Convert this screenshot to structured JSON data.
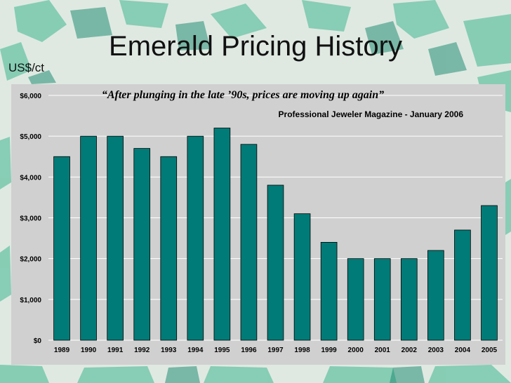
{
  "slide": {
    "title": "Emerald Pricing History",
    "unit_label": "US$/ct"
  },
  "colors": {
    "bar_fill": "#007b77",
    "plot_background": "#d0d0d0",
    "gridline": "#ffffff",
    "slide_background": "#dfe9e2",
    "emerald_light": "#3fb78f",
    "emerald_dark": "#13866a"
  },
  "chart_data": {
    "type": "bar",
    "title": "",
    "annotations": [
      "“After plunging in the late ’90s, prices are moving up again”",
      "Professional Jeweler Magazine - January 2006"
    ],
    "xlabel": "",
    "ylabel": "US$/ct",
    "categories": [
      "1989",
      "1990",
      "1991",
      "1992",
      "1993",
      "1994",
      "1995",
      "1996",
      "1997",
      "1998",
      "1999",
      "2000",
      "2001",
      "2002",
      "2003",
      "2004",
      "2005"
    ],
    "values": [
      4500,
      5000,
      5000,
      4700,
      4500,
      5000,
      5200,
      4800,
      3800,
      3100,
      2400,
      2000,
      2000,
      2000,
      2200,
      2700,
      3300
    ],
    "ylim": [
      0,
      6000
    ],
    "yticks": [
      0,
      1000,
      2000,
      3000,
      4000,
      5000,
      6000
    ],
    "ytick_labels": [
      "$0",
      "$1,000",
      "$2,000",
      "$3,000",
      "$4,000",
      "$5,000",
      "$6,000"
    ],
    "grid": true,
    "legend": "none"
  }
}
